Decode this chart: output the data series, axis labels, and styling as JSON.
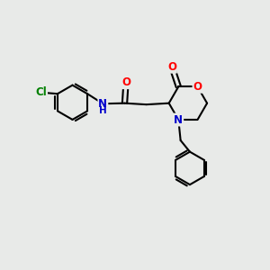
{
  "background_color": "#e8eae8",
  "bond_color": "#000000",
  "bond_width": 1.5,
  "atom_colors": {
    "O": "#ff0000",
    "N": "#0000cc",
    "Cl": "#008000",
    "C": "#000000"
  },
  "font_size": 8.5
}
